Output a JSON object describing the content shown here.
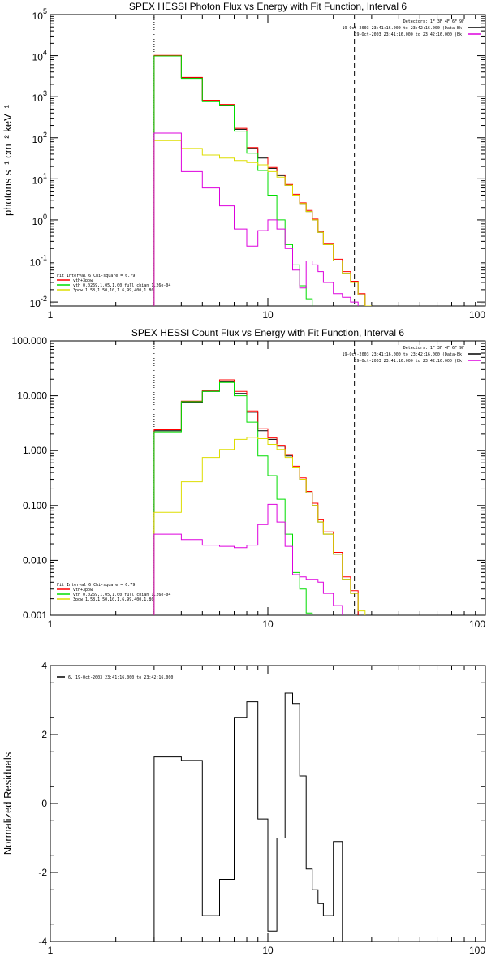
{
  "chart_data": [
    {
      "type": "line",
      "step": true,
      "title": "SPEX HESSI Photon Flux vs Energy with Fit Function, Interval 6",
      "ylabel": "photons s⁻¹ cm⁻² keV⁻¹",
      "xscale": "log",
      "yscale": "log",
      "xlim": [
        1,
        100
      ],
      "ylim": [
        0.008,
        100000
      ],
      "xticks": [
        {
          "v": 1,
          "label": "1"
        },
        {
          "v": 10,
          "label": "10"
        },
        {
          "v": 100,
          "label": "100"
        }
      ],
      "yticks": [
        {
          "v": 0.01,
          "label": "10⁻²",
          "base": "10",
          "exp": "-2"
        },
        {
          "v": 0.1,
          "label": "10⁻¹",
          "base": "10",
          "exp": "-1"
        },
        {
          "v": 1,
          "label": "10⁰",
          "base": "10",
          "exp": "0"
        },
        {
          "v": 10,
          "label": "10¹",
          "base": "10",
          "exp": "1"
        },
        {
          "v": 100,
          "label": "10²",
          "base": "10",
          "exp": "2"
        },
        {
          "v": 1000,
          "label": "10³",
          "base": "10",
          "exp": "3"
        },
        {
          "v": 10000,
          "label": "10⁴",
          "base": "10",
          "exp": "4"
        },
        {
          "v": 100000,
          "label": "10⁵",
          "base": "10",
          "exp": "5"
        }
      ],
      "vlines": [
        {
          "x": 3.0,
          "style": "dotted"
        },
        {
          "x": 25.0,
          "style": "dashed"
        }
      ],
      "edges": [
        3,
        4,
        5,
        6,
        7,
        8,
        9,
        10,
        11,
        12,
        13,
        14,
        15,
        16,
        17,
        18,
        20,
        22,
        24,
        26,
        28,
        30
      ],
      "series": [
        {
          "color": "#000000",
          "values": [
            10000,
            2900,
            800,
            640,
            160,
            55,
            32,
            18,
            12,
            7,
            4,
            2.5,
            1.6,
            1.0,
            0.5,
            0.25,
            0.1,
            0.05,
            0.03,
            0.015,
            null
          ]
        },
        {
          "color": "#ff0000",
          "values": [
            10200,
            2950,
            820,
            650,
            170,
            58,
            34,
            19,
            12.5,
            7.3,
            4.2,
            2.6,
            1.7,
            1.05,
            0.53,
            0.27,
            0.11,
            0.055,
            0.032,
            0.016,
            null
          ]
        },
        {
          "color": "#00dd00",
          "values": [
            9800,
            2800,
            760,
            620,
            145,
            42,
            16,
            4,
            1.0,
            0.25,
            0.08,
            0.025,
            0.012,
            null,
            null,
            null,
            null,
            null,
            null,
            null,
            null
          ]
        },
        {
          "color": "#dddd00",
          "values": [
            85,
            55,
            38,
            32,
            28,
            25,
            22,
            15,
            11,
            7,
            4,
            2.5,
            1.6,
            1.0,
            0.5,
            0.25,
            0.1,
            0.05,
            0.03,
            0.015,
            0.008
          ]
        },
        {
          "color": "#dd00dd",
          "values": [
            130,
            15,
            6,
            2.2,
            0.6,
            0.23,
            0.55,
            1.0,
            0.6,
            0.2,
            0.06,
            0.022,
            0.1,
            0.08,
            0.055,
            0.03,
            0.016,
            0.013,
            0.01,
            null,
            null
          ]
        }
      ],
      "legend_tr": {
        "detectors": "Detectors: 1F 3F 4F 6F 9F",
        "items": [
          {
            "text": "19-Oct-2003 23:41:16.000 to 23:42:16.000 (Data-Bk)",
            "color": "#000000"
          },
          {
            "text": "19-Oct-2003 23:41:16.000 to 23:42:16.000 (Bk)",
            "color": "#dd00dd"
          }
        ]
      },
      "legend_bl": {
        "header": "Fit Interval 6   Chi-square = 6.79",
        "items": [
          {
            "text": "vth+3pow",
            "color": "#ff0000"
          },
          {
            "text": "vth 0.0269,1.05,1.00  full chian 1.26e-04",
            "color": "#00dd00"
          },
          {
            "text": "3pow 1.58,1.50,10,1.6,99,400,1.80",
            "color": "#dddd00"
          }
        ]
      }
    },
    {
      "type": "line",
      "step": true,
      "title": "SPEX HESSI Count Flux vs Energy with Fit Function, Interval 6",
      "ylabel": "",
      "xscale": "log",
      "yscale": "log",
      "xlim": [
        1,
        100
      ],
      "ylim": [
        0.001,
        100
      ],
      "xticks": [
        {
          "v": 1,
          "label": "1"
        },
        {
          "v": 10,
          "label": "10"
        },
        {
          "v": 100,
          "label": "100"
        }
      ],
      "yticks": [
        {
          "v": 0.001,
          "label": "0.001"
        },
        {
          "v": 0.01,
          "label": "0.010"
        },
        {
          "v": 0.1,
          "label": "0.100"
        },
        {
          "v": 1,
          "label": "1.000"
        },
        {
          "v": 10,
          "label": "10.000"
        },
        {
          "v": 100,
          "label": "100.000"
        }
      ],
      "vlines": [
        {
          "x": 3.0,
          "style": "dotted"
        },
        {
          "x": 25.0,
          "style": "dashed"
        }
      ],
      "edges": [
        3,
        4,
        5,
        6,
        7,
        8,
        9,
        10,
        11,
        12,
        13,
        14,
        15,
        16,
        17,
        18,
        20,
        22,
        24,
        26,
        28,
        30
      ],
      "series": [
        {
          "color": "#000000",
          "values": [
            2.3,
            7.5,
            12,
            18,
            11,
            5,
            2.3,
            1.6,
            1.2,
            0.8,
            0.5,
            0.3,
            0.17,
            0.1,
            0.05,
            0.03,
            0.013,
            0.0045,
            0.0025,
            null,
            null
          ]
        },
        {
          "color": "#ff0000",
          "values": [
            2.4,
            8,
            12.5,
            19.5,
            12,
            5.3,
            2.5,
            1.7,
            1.25,
            0.85,
            0.52,
            0.32,
            0.18,
            0.11,
            0.055,
            0.033,
            0.014,
            0.005,
            0.0028,
            null,
            null
          ]
        },
        {
          "color": "#00dd00",
          "values": [
            2.2,
            7.8,
            12,
            17.5,
            10,
            3.3,
            0.8,
            0.35,
            0.13,
            0.03,
            0.006,
            0.003,
            0.0011,
            null,
            null,
            null,
            null,
            null,
            null,
            null,
            null
          ]
        },
        {
          "color": "#dddd00",
          "values": [
            0.075,
            0.27,
            0.75,
            1.05,
            1.6,
            1.75,
            1.65,
            1.3,
            1.05,
            0.75,
            0.5,
            0.3,
            0.17,
            0.1,
            0.05,
            0.03,
            0.013,
            0.0045,
            0.0025,
            0.0012,
            null
          ]
        },
        {
          "color": "#dd00dd",
          "values": [
            0.03,
            0.024,
            0.019,
            0.018,
            0.017,
            0.019,
            0.045,
            0.105,
            0.05,
            0.018,
            0.0055,
            0.005,
            0.0045,
            0.0045,
            0.004,
            0.0025,
            0.0015,
            null,
            null,
            null,
            null
          ]
        }
      ],
      "legend_tr": {
        "detectors": "Detectors: 1F 3F 4F 6F 9F",
        "items": [
          {
            "text": "19-Oct-2003 23:41:16.000 to 23:42:16.000 (Data-Bk)",
            "color": "#000000"
          },
          {
            "text": "19-Oct-2003 23:41:16.000 to 23:42:16.000 (Bk)",
            "color": "#dd00dd"
          }
        ]
      },
      "legend_bl": {
        "header": "Fit Interval 6   Chi-square = 6.79",
        "items": [
          {
            "text": "vth+3pow",
            "color": "#ff0000"
          },
          {
            "text": "vth 0.0269,1.05,1.00  full chian 1.26e-04",
            "color": "#00dd00"
          },
          {
            "text": "3pow 1.58,1.50,10,1.6,99,400,1.80",
            "color": "#dddd00"
          }
        ]
      }
    },
    {
      "type": "line",
      "step": true,
      "title": "",
      "ylabel": "Normalized Residuals",
      "xscale": "log",
      "yscale": "linear",
      "xlim": [
        1,
        100
      ],
      "ylim": [
        -4,
        4
      ],
      "xticks": [
        {
          "v": 1,
          "label": "1"
        },
        {
          "v": 10,
          "label": "10"
        },
        {
          "v": 100,
          "label": "100"
        }
      ],
      "yticks": [
        {
          "v": -4,
          "label": "-4"
        },
        {
          "v": -2,
          "label": "-2"
        },
        {
          "v": 0,
          "label": "0"
        },
        {
          "v": 2,
          "label": "2"
        },
        {
          "v": 4,
          "label": "4"
        }
      ],
      "vlines": [],
      "edges": [
        3,
        4,
        5,
        6,
        7,
        8,
        9,
        10,
        11,
        12,
        13,
        14,
        15,
        16,
        17,
        18,
        20,
        22,
        24,
        26
      ],
      "series": [
        {
          "color": "#000000",
          "values": [
            1.35,
            1.25,
            -3.25,
            -2.2,
            2.5,
            2.95,
            -0.45,
            -3.7,
            -1.0,
            3.2,
            2.9,
            0.8,
            -1.9,
            -2.5,
            -2.9,
            -3.25,
            -1.1,
            null,
            null
          ]
        }
      ],
      "legend_tr": null,
      "legend_bl": null,
      "legend_tl": {
        "items": [
          {
            "text": "6, 19-Oct-2003 23:41:16.000 to 23:42:16.000",
            "color": "#000000"
          }
        ]
      }
    }
  ]
}
